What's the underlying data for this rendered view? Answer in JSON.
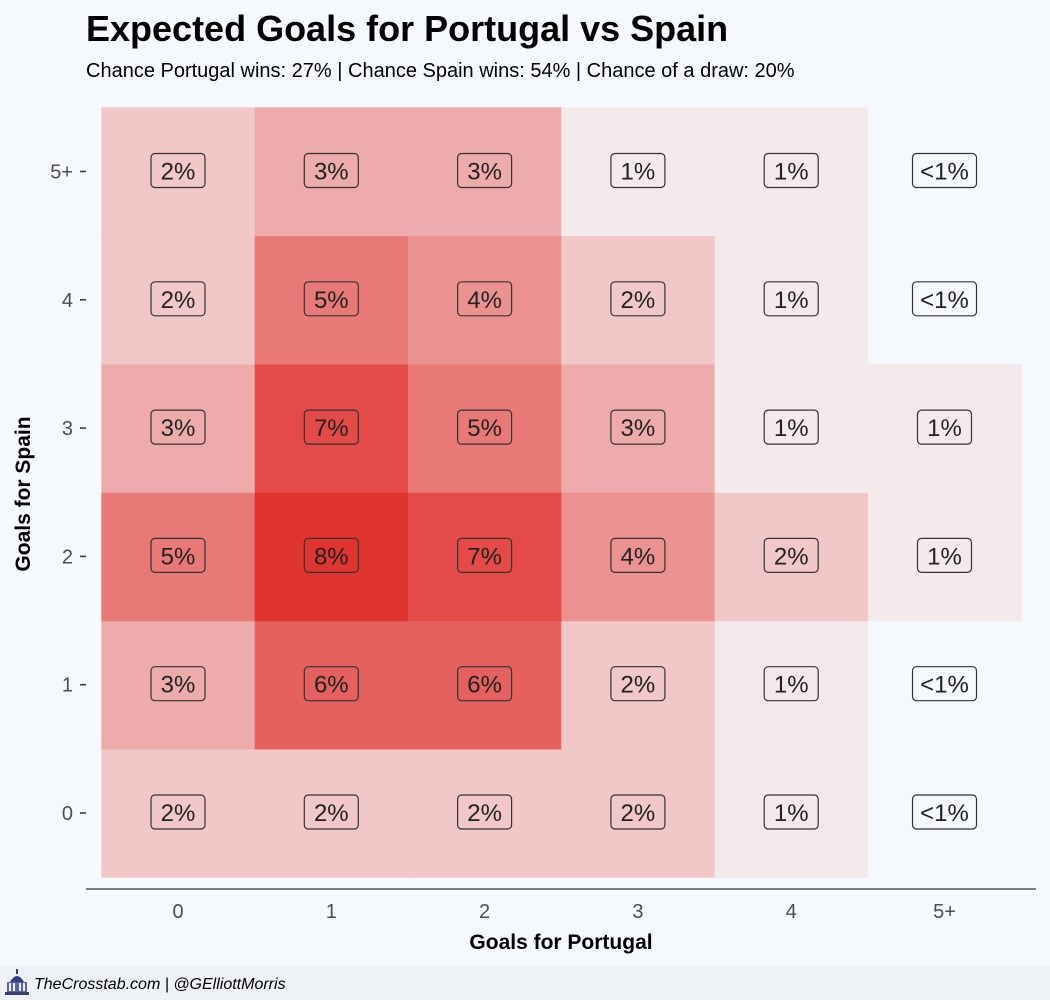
{
  "title": "Expected Goals for Portugal vs Spain",
  "subtitle": "Chance Portugal wins: 27% | Chance Spain wins: 54% | Chance of a draw: 20%",
  "footer": {
    "credit": "TheCrosstab.com | @GElliottMorris",
    "logo_icon": "capitol-dome-icon"
  },
  "chart_data": {
    "type": "heatmap",
    "title": "Expected Goals for Portugal vs Spain",
    "xlabel": "Goals for Portugal",
    "ylabel": "Goals for Spain",
    "x_categories": [
      "0",
      "1",
      "2",
      "3",
      "4",
      "5+"
    ],
    "y_categories": [
      "0",
      "1",
      "2",
      "3",
      "4",
      "5+"
    ],
    "grid": false,
    "colors": {
      "low": "#f5eaeb",
      "high": "#e03431"
    },
    "cells": [
      {
        "x": "0",
        "y": "0",
        "value": 2,
        "label": "2%"
      },
      {
        "x": "1",
        "y": "0",
        "value": 2,
        "label": "2%"
      },
      {
        "x": "2",
        "y": "0",
        "value": 2,
        "label": "2%"
      },
      {
        "x": "3",
        "y": "0",
        "value": 2,
        "label": "2%"
      },
      {
        "x": "4",
        "y": "0",
        "value": 1,
        "label": "1%"
      },
      {
        "x": "5+",
        "y": "0",
        "value": 0.5,
        "label": "<1%"
      },
      {
        "x": "0",
        "y": "1",
        "value": 3,
        "label": "3%"
      },
      {
        "x": "1",
        "y": "1",
        "value": 6,
        "label": "6%"
      },
      {
        "x": "2",
        "y": "1",
        "value": 6,
        "label": "6%"
      },
      {
        "x": "3",
        "y": "1",
        "value": 2,
        "label": "2%"
      },
      {
        "x": "4",
        "y": "1",
        "value": 1,
        "label": "1%"
      },
      {
        "x": "5+",
        "y": "1",
        "value": 0.5,
        "label": "<1%"
      },
      {
        "x": "0",
        "y": "2",
        "value": 5,
        "label": "5%"
      },
      {
        "x": "1",
        "y": "2",
        "value": 8,
        "label": "8%"
      },
      {
        "x": "2",
        "y": "2",
        "value": 7,
        "label": "7%"
      },
      {
        "x": "3",
        "y": "2",
        "value": 4,
        "label": "4%"
      },
      {
        "x": "4",
        "y": "2",
        "value": 2,
        "label": "2%"
      },
      {
        "x": "5+",
        "y": "2",
        "value": 1,
        "label": "1%"
      },
      {
        "x": "0",
        "y": "3",
        "value": 3,
        "label": "3%"
      },
      {
        "x": "1",
        "y": "3",
        "value": 7,
        "label": "7%"
      },
      {
        "x": "2",
        "y": "3",
        "value": 5,
        "label": "5%"
      },
      {
        "x": "3",
        "y": "3",
        "value": 3,
        "label": "3%"
      },
      {
        "x": "4",
        "y": "3",
        "value": 1,
        "label": "1%"
      },
      {
        "x": "5+",
        "y": "3",
        "value": 1,
        "label": "1%"
      },
      {
        "x": "0",
        "y": "4",
        "value": 2,
        "label": "2%"
      },
      {
        "x": "1",
        "y": "4",
        "value": 5,
        "label": "5%"
      },
      {
        "x": "2",
        "y": "4",
        "value": 4,
        "label": "4%"
      },
      {
        "x": "3",
        "y": "4",
        "value": 2,
        "label": "2%"
      },
      {
        "x": "4",
        "y": "4",
        "value": 1,
        "label": "1%"
      },
      {
        "x": "5+",
        "y": "4",
        "value": 0.5,
        "label": "<1%"
      },
      {
        "x": "0",
        "y": "5+",
        "value": 2,
        "label": "2%"
      },
      {
        "x": "1",
        "y": "5+",
        "value": 3,
        "label": "3%"
      },
      {
        "x": "2",
        "y": "5+",
        "value": 3,
        "label": "3%"
      },
      {
        "x": "3",
        "y": "5+",
        "value": 1,
        "label": "1%"
      },
      {
        "x": "4",
        "y": "5+",
        "value": 1,
        "label": "1%"
      },
      {
        "x": "5+",
        "y": "5+",
        "value": 0.5,
        "label": "<1%"
      }
    ]
  }
}
